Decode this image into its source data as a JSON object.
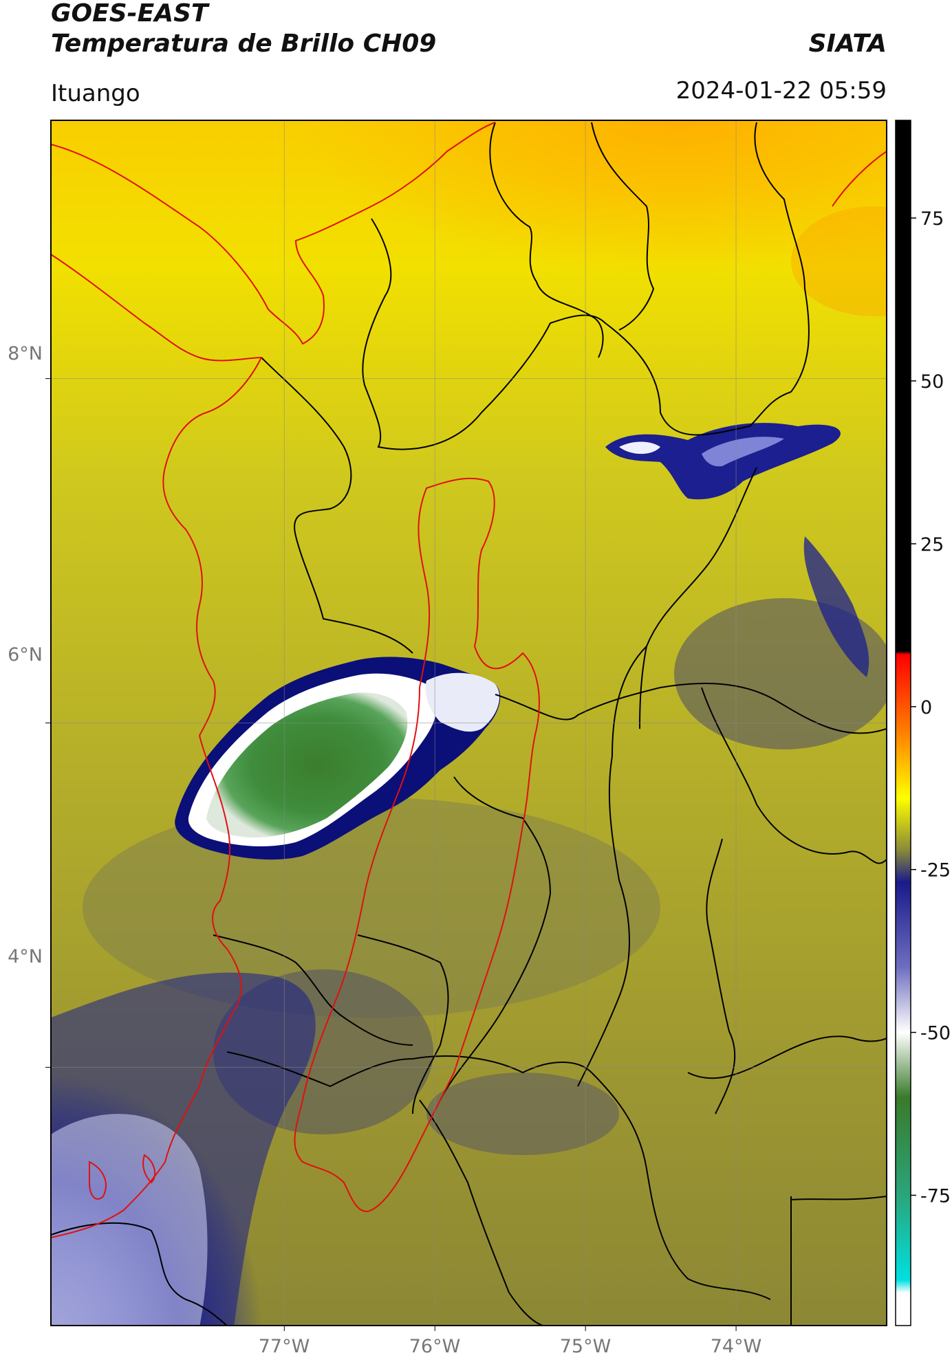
{
  "header": {
    "satellite": "GOES-EAST",
    "product": "Temperatura de Brillo CH09",
    "brand": "SIATA",
    "location": "Ituango",
    "datetime": "2024-01-22 05:59"
  },
  "map": {
    "lat_labels": [
      "8°N",
      "6°N",
      "4°N"
    ],
    "lon_labels": [
      "77°W",
      "76°W",
      "75°W",
      "74°W"
    ],
    "lat_values": [
      8,
      6,
      4
    ],
    "lon_values": [
      -77,
      -76,
      -75,
      -74
    ],
    "lat_range": [
      2.5,
      9.5
    ],
    "lon_range": [
      -78.55,
      -73.0
    ],
    "colors": {
      "background_north": "#f7d000",
      "background_mid": "#c9c21a",
      "background_south": "#8f8a2a",
      "cold_cloud": "#0b0f7a",
      "cloud_core": "#3f8c3a",
      "coast_border": "#e01010",
      "admin_border": "#000000"
    }
  },
  "colorbar": {
    "label_values": [
      "75",
      "50",
      "25",
      "0",
      "-25",
      "-50",
      "-75"
    ],
    "numeric_values": [
      75,
      50,
      25,
      0,
      -25,
      -50,
      -75
    ],
    "range": [
      -95,
      90
    ],
    "stops": [
      {
        "v": 90,
        "c": "#000000"
      },
      {
        "v": 8.5,
        "c": "#000000"
      },
      {
        "v": 8,
        "c": "#ff0000"
      },
      {
        "v": -4,
        "c": "#ff8000"
      },
      {
        "v": -14,
        "c": "#ffff00"
      },
      {
        "v": -22,
        "c": "#8a8a3a"
      },
      {
        "v": -27,
        "c": "#1a1a8a"
      },
      {
        "v": -40,
        "c": "#6e6ec0"
      },
      {
        "v": -50,
        "c": "#ffffff"
      },
      {
        "v": -60,
        "c": "#3a7a2a"
      },
      {
        "v": -75,
        "c": "#2aa57a"
      },
      {
        "v": -88,
        "c": "#00e0e0"
      },
      {
        "v": -90,
        "c": "#ffffff"
      },
      {
        "v": -95,
        "c": "#ffffff"
      }
    ]
  }
}
